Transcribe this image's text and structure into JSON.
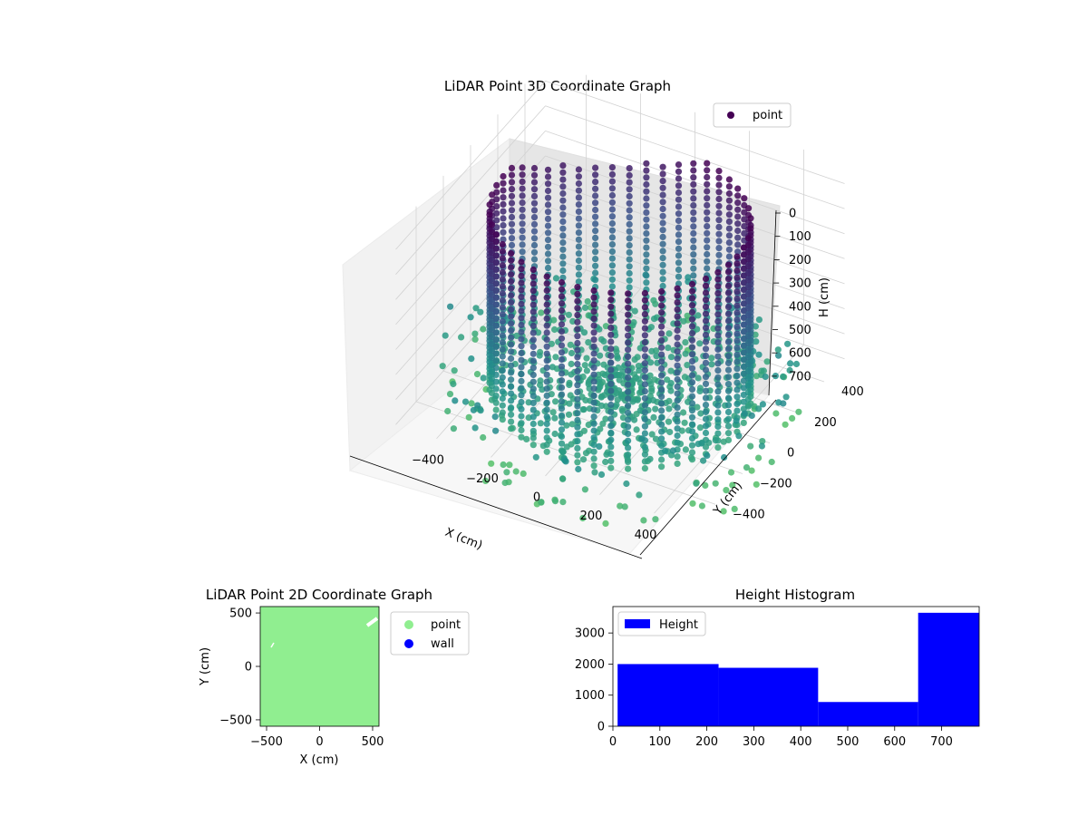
{
  "chart_data": [
    {
      "type": "scatter",
      "projection": "3d",
      "title": "LiDAR Point 3D Coordinate Graph",
      "xlabel": "X (cm)",
      "ylabel": "Y (cm)",
      "zlabel": "H (cm)",
      "x_ticks": [
        "−400",
        "−200",
        "0",
        "200",
        "400"
      ],
      "y_ticks": [
        "−400",
        "−200",
        "0",
        "200",
        "400"
      ],
      "z_ticks": [
        "0",
        "100",
        "200",
        "300",
        "400",
        "500",
        "600",
        "700"
      ],
      "xlim": [
        -550,
        550
      ],
      "ylim": [
        -550,
        550
      ],
      "zlim": [
        0,
        780
      ],
      "z_inverted": true,
      "colormap": "viridis",
      "legend": {
        "entries": [
          "point"
        ],
        "placement": "upper-right",
        "color": "#440154"
      },
      "series": [
        {
          "name": "point",
          "structure": "circular wall of vertical point columns, ring radius ~430 cm, heights 0–700 cm, with radial floor rays and scattered outer points",
          "ring_radius": 430,
          "column_count": 48,
          "column_height_range": [
            0,
            700
          ],
          "floor_rays": 36,
          "floor_ray_radius": 430,
          "floor_height": 700
        }
      ],
      "grid": true
    },
    {
      "type": "scatter",
      "title": "LiDAR Point 2D Coordinate Graph",
      "xlabel": "X (cm)",
      "ylabel": "Y (cm)",
      "xlim": [
        -560,
        560
      ],
      "ylim": [
        -560,
        560
      ],
      "x_ticks": [
        "−500",
        "0",
        "500"
      ],
      "y_ticks": [
        "−500",
        "0",
        "500"
      ],
      "legend": {
        "entries": [
          "point",
          "wall"
        ],
        "placement": "outside-right",
        "colors": [
          "#90ee90",
          "#0000ff"
        ]
      },
      "series": [
        {
          "name": "point",
          "color": "#90ee90",
          "coverage": "fills the full plot area"
        },
        {
          "name": "wall",
          "color": "#0000ff",
          "coverage": "not visible"
        }
      ]
    },
    {
      "type": "bar",
      "title": "Height Histogram",
      "xlim": [
        0,
        780
      ],
      "ylim": [
        0,
        3850
      ],
      "x_ticks": [
        "0",
        "100",
        "200",
        "300",
        "400",
        "500",
        "600",
        "700"
      ],
      "y_ticks": [
        "0",
        "1000",
        "2000",
        "3000"
      ],
      "legend": {
        "entries": [
          "Height"
        ],
        "placement": "upper-left",
        "color": "#0000ff"
      },
      "bar_color": "#0000ff",
      "bins": [
        {
          "from": 10,
          "to": 225,
          "value": 2000
        },
        {
          "from": 225,
          "to": 437,
          "value": 1880
        },
        {
          "from": 437,
          "to": 650,
          "value": 780
        },
        {
          "from": 650,
          "to": 780,
          "value": 3650
        }
      ]
    }
  ]
}
